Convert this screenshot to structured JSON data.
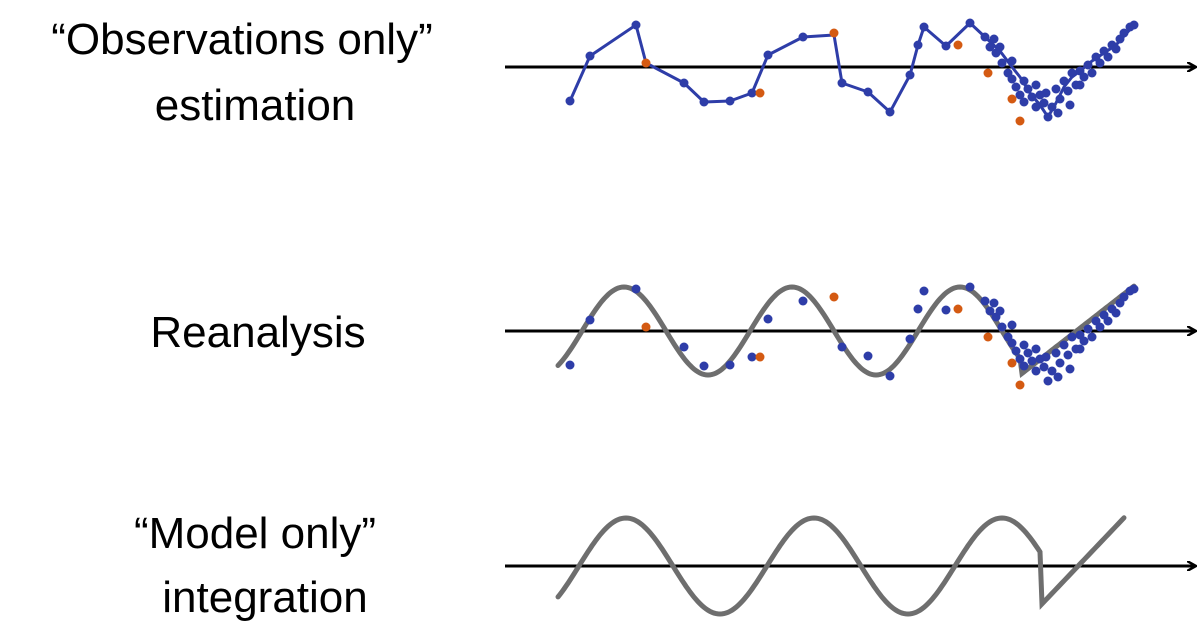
{
  "panels": [
    {
      "label_lines": [
        "“Observations only”",
        "estimation"
      ],
      "show_curve": false,
      "show_obs": true,
      "connect_obs": true
    },
    {
      "label_lines": [
        "Reanalysis"
      ],
      "show_curve": true,
      "show_obs": true,
      "connect_obs": false
    },
    {
      "label_lines": [
        "“Model only”",
        "integration"
      ],
      "show_curve": true,
      "show_obs": false,
      "connect_obs": false
    }
  ],
  "colors": {
    "axis": "#000000",
    "curve": "#6e6e6e",
    "obs_used": "#2e3da8",
    "obs_rejected": "#d45a12",
    "obs_line": "#2e3da8"
  }
}
